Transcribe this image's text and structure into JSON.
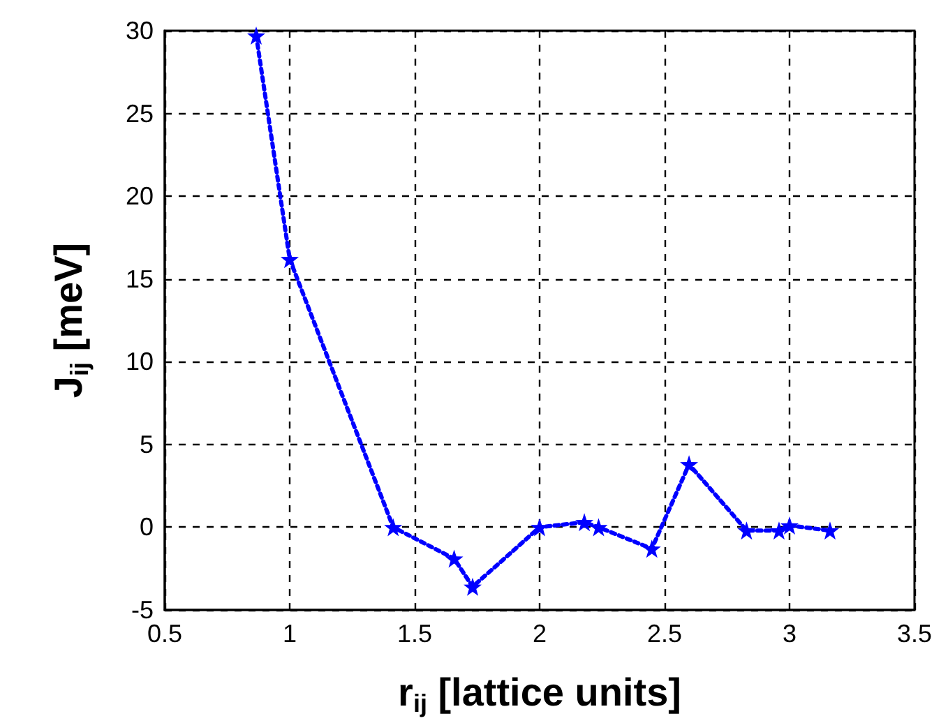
{
  "chart_data": {
    "type": "line",
    "xlabel": "r$_{ij}$ [lattice units]",
    "ylabel": "J$_{ij}$ [meV]",
    "x": [
      0.866,
      1,
      1.414,
      1.658,
      1.732,
      2,
      2.179,
      2.236,
      2.449,
      2.598,
      2.828,
      2.958,
      3,
      3.162
    ],
    "series": [
      {
        "color": "#0000ff",
        "values": [
          29.7,
          16.2,
          0,
          -1.9,
          -3.6,
          0,
          0.3,
          0,
          -1.3,
          3.8,
          -0.2,
          -0.2,
          0.1,
          -0.2
        ]
      }
    ],
    "xlim": [
      0.5,
      3.5
    ],
    "xticks": [
      0.5,
      1,
      1.5,
      2,
      2.5,
      3,
      3.5
    ],
    "ylim": [
      -5,
      30
    ],
    "yticks": [
      -5,
      0,
      5,
      10,
      15,
      20,
      25,
      30
    ],
    "grid": true,
    "marker": "star",
    "line_style": "dotted"
  }
}
